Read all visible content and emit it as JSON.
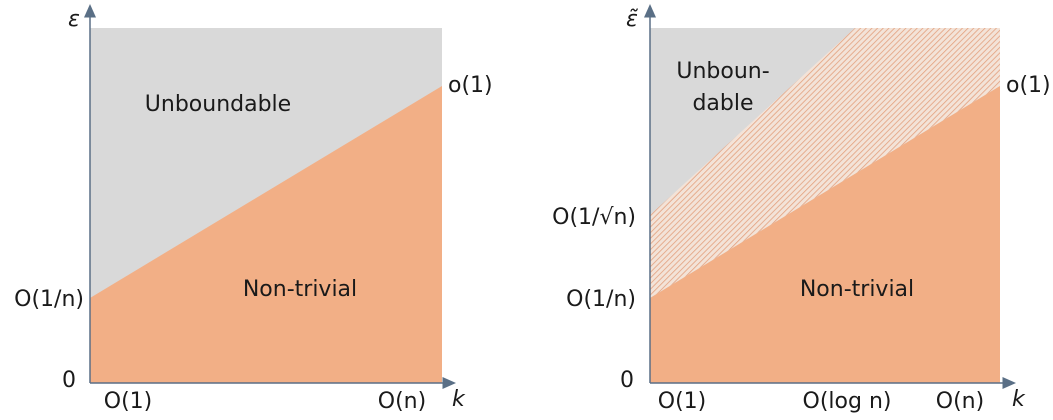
{
  "left_panel": {
    "y_axis_label": "ε",
    "x_axis_label": "k",
    "right_label": "o(1)",
    "region_upper": "Unboundable",
    "region_lower": "Non-trivial",
    "y_labels": [
      "O(1/n)",
      "0"
    ],
    "x_labels": [
      "O(1)",
      "O(n)"
    ]
  },
  "right_panel": {
    "y_axis_label": "ε̃",
    "x_axis_label": "k",
    "right_label": "o(1)",
    "region_upper": [
      "Unboun-",
      "dable"
    ],
    "region_lower": "Non-trivial",
    "y_labels": [
      "O(1/√n)",
      "O(1/n)",
      "0"
    ],
    "x_labels": [
      "O(1)",
      "O(log n)",
      "O(n)"
    ]
  }
}
